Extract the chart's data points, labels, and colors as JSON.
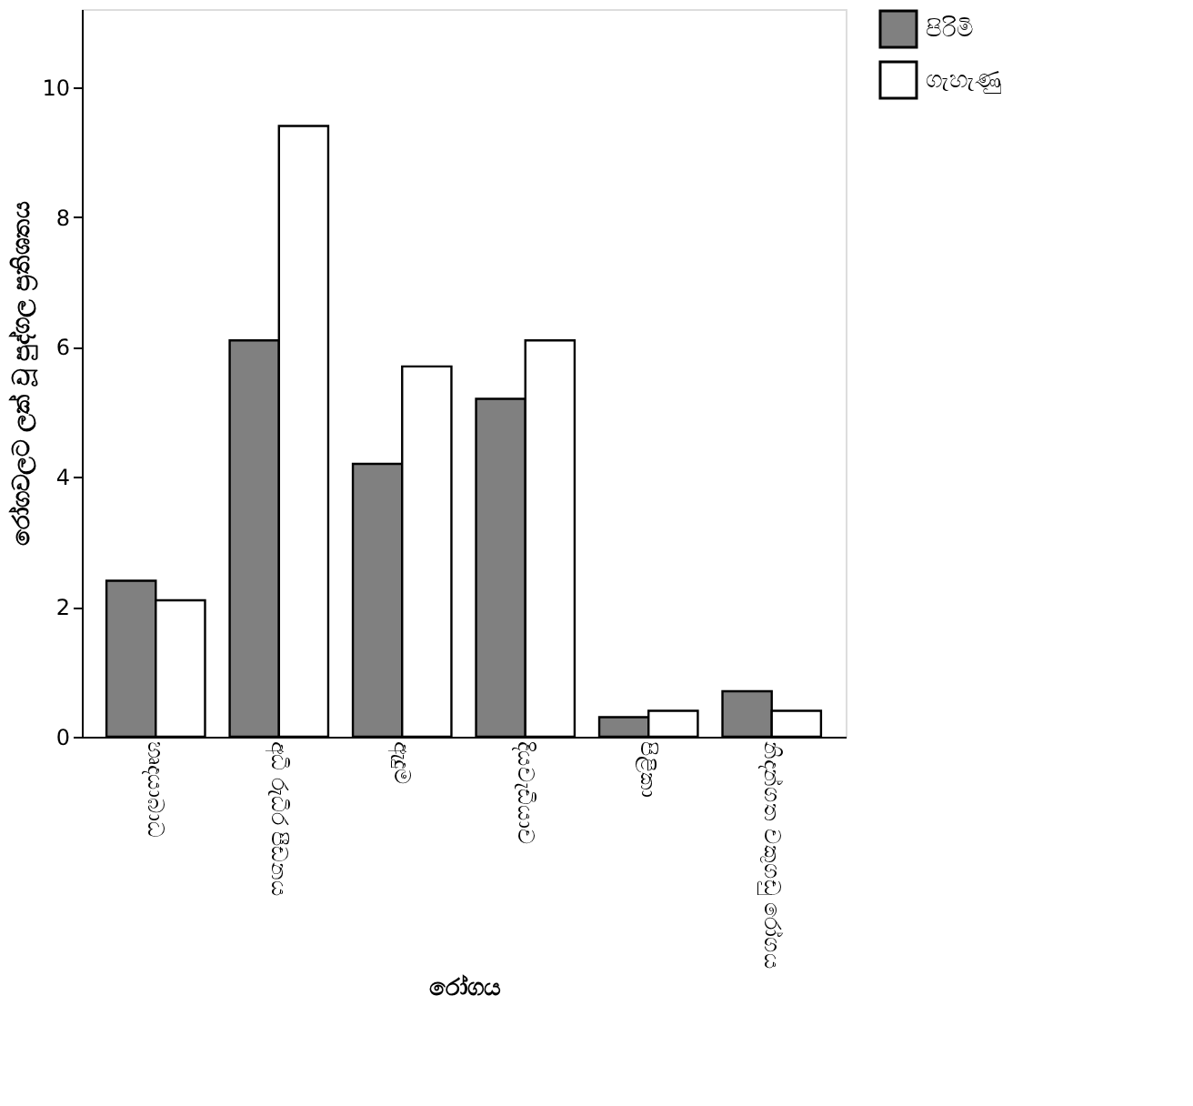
{
  "chart_data": {
    "type": "bar",
    "xlabel": "රෝගය",
    "ylabel": "රෝගවලට ලක් වූ පුද්ගල ප්‍රතිශතය",
    "categories": [
      "හෘදයාබාධ",
      "අධි රුධිර පීඩනය",
      "ඇදුම",
      "දියවැඩියාව",
      "පිළිකා",
      "නිදන්ගත වකුගඩු රෝගය"
    ],
    "series": [
      {
        "name": "පිරිමි",
        "color": "#808080",
        "values": [
          2.4,
          6.1,
          4.2,
          5.2,
          0.3,
          0.7
        ]
      },
      {
        "name": "ගැහැණු",
        "color": "#ffffff",
        "values": [
          2.1,
          9.4,
          5.7,
          6.1,
          0.4,
          0.4
        ]
      }
    ],
    "ylim": [
      0,
      11.2
    ],
    "yticks": [
      0,
      2,
      4,
      6,
      8,
      10
    ],
    "grid": false,
    "legend": "right"
  }
}
